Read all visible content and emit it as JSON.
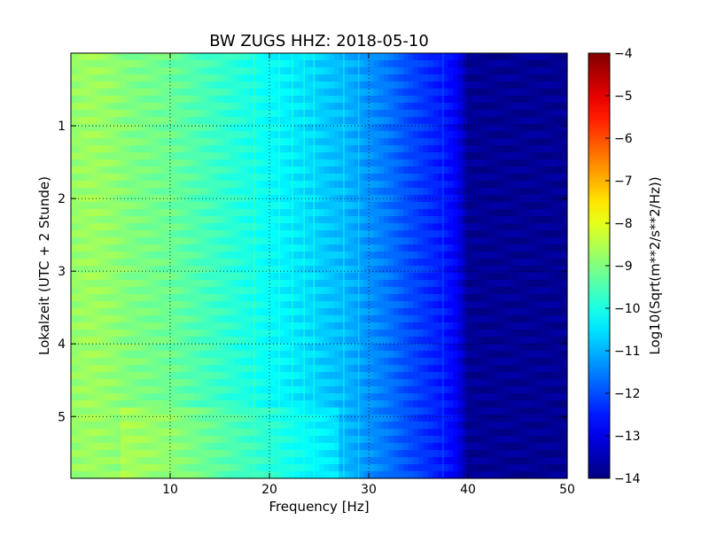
{
  "chart_data": {
    "type": "heatmap",
    "title": "BW ZUGS HHZ: 2018-05-10",
    "xlabel": "Frequency [Hz]",
    "ylabel": "Lokalzeit (UTC + 2 Stunde)",
    "xlim": [
      0,
      50
    ],
    "ylim": [
      5.85,
      0.0
    ],
    "x_ticks": [
      10,
      20,
      30,
      40,
      50
    ],
    "x_tick_labels": [
      "10",
      "20",
      "30",
      "40",
      "50"
    ],
    "y_ticks": [
      1,
      2,
      3,
      4,
      5
    ],
    "y_tick_labels": [
      "1",
      "2",
      "3",
      "4",
      "5"
    ],
    "grid": true,
    "colorscale": "jet",
    "colorbar": {
      "label": "Log10(Sqrt(m**2/s**2/Hz))",
      "range": [
        -14,
        -4
      ],
      "ticks": [
        -4,
        -5,
        -6,
        -7,
        -8,
        -9,
        -10,
        -11,
        -12,
        -13,
        -14
      ],
      "tick_labels": [
        "−4",
        "−5",
        "−6",
        "−7",
        "−8",
        "−9",
        "−10",
        "−11",
        "−12",
        "−13",
        "−14"
      ]
    },
    "spectrum_profile": {
      "frequency_hz": [
        0,
        2,
        4,
        6,
        8,
        10,
        12,
        14,
        16,
        18,
        20,
        22,
        24,
        26,
        28,
        30,
        32,
        34,
        36,
        38,
        39,
        40,
        45,
        50
      ],
      "log10_amplitude": [
        -8.8,
        -8.7,
        -8.8,
        -9.0,
        -9.1,
        -9.2,
        -9.4,
        -9.6,
        -9.8,
        -10.0,
        -10.2,
        -10.4,
        -10.6,
        -10.8,
        -11.0,
        -11.3,
        -11.6,
        -12.0,
        -12.3,
        -12.6,
        -12.9,
        -13.8,
        -13.8,
        -13.8
      ]
    },
    "vertical_lines_hz": [
      18.5,
      21.0,
      22.3,
      23.5,
      24.5,
      27.5,
      29.0,
      37.5
    ],
    "time_band_enhancement": {
      "hours": [
        4.9,
        5.85
      ],
      "frequency_hz": [
        5,
        27
      ],
      "delta_log10": 0.35
    }
  }
}
